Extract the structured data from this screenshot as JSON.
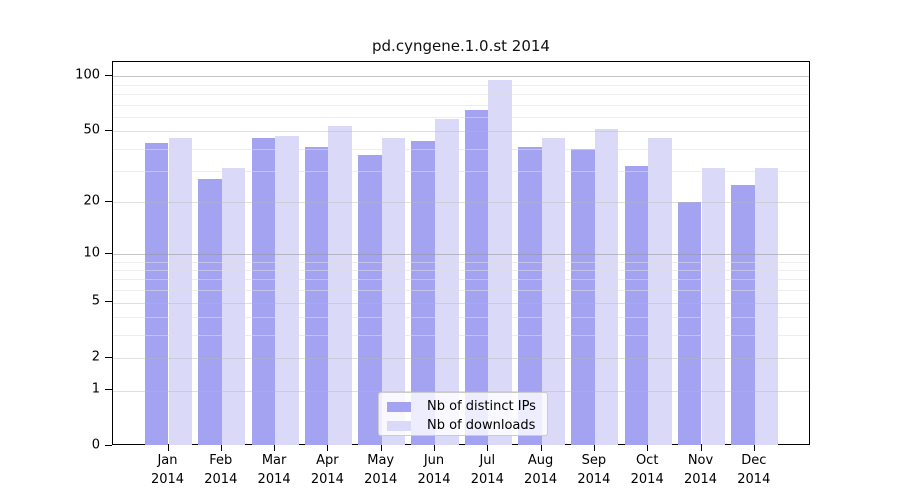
{
  "chart_data": {
    "type": "bar",
    "title": "pd.cyngene.1.0.st 2014",
    "categories": [
      "Jan",
      "Feb",
      "Mar",
      "Apr",
      "May",
      "Jun",
      "Jul",
      "Aug",
      "Sep",
      "Oct",
      "Nov",
      "Dec"
    ],
    "x_tick_year": "2014",
    "series": [
      {
        "name": "Nb of distinct IPs",
        "color": "#a3a3f2",
        "values": [
          43,
          27,
          46,
          41,
          37,
          44,
          65,
          41,
          40,
          32,
          20,
          25
        ]
      },
      {
        "name": "Nb of downloads",
        "color": "#dadaf8",
        "values": [
          46,
          31,
          47,
          53,
          46,
          58,
          96,
          46,
          51,
          46,
          31,
          31
        ]
      }
    ],
    "y_axis": {
      "scale": "log10(value+1)",
      "tick_values": [
        0,
        1,
        2,
        5,
        10,
        20,
        50,
        100
      ],
      "major_gridlines": [
        10,
        100
      ],
      "regular_gridlines": [
        1,
        2,
        5,
        20,
        50
      ],
      "minor_gridlines": [
        3,
        4,
        6,
        7,
        8,
        9,
        30,
        40,
        60,
        70,
        80,
        90
      ],
      "range": [
        0,
        100
      ]
    },
    "legend": {
      "position": "lower-center"
    },
    "grid": "horizontal"
  }
}
